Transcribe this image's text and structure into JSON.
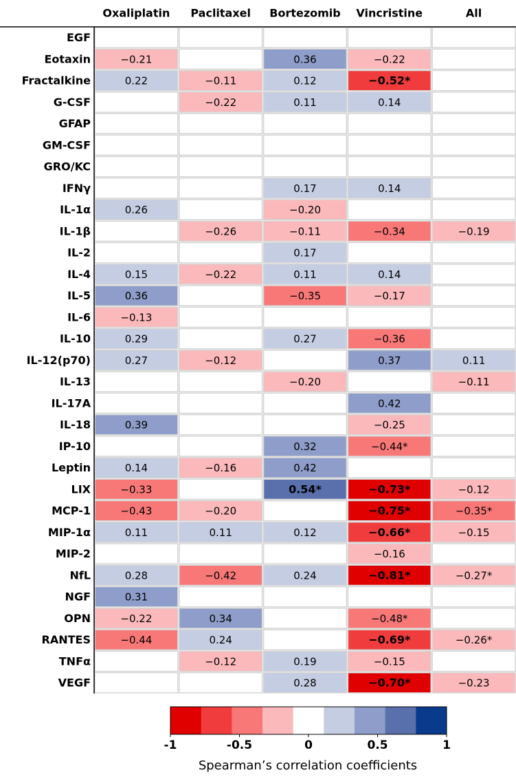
{
  "chart_data": {
    "type": "heatmap",
    "columns": [
      "Oxaliplatin",
      "Paclitaxel",
      "Bortezomib",
      "Vincristine",
      "All"
    ],
    "rows": [
      "EGF",
      "Eotaxin",
      "Fractalkine",
      "G-CSF",
      "GFAP",
      "GM-CSF",
      "GRO/KC",
      "IFNγ",
      "IL-1α",
      "IL-1β",
      "IL-2",
      "IL-4",
      "IL-5",
      "IL-6",
      "IL-10",
      "IL-12(p70)",
      "IL-13",
      "IL-17A",
      "IL-18",
      "IP-10",
      "Leptin",
      "LIX",
      "MCP-1",
      "MIP-1α",
      "MIP-2",
      "NfL",
      "NGF",
      "OPN",
      "RANTES",
      "TNFα",
      "VEGF"
    ],
    "values": [
      [
        null,
        null,
        null,
        null,
        null
      ],
      [
        -0.21,
        null,
        0.36,
        -0.22,
        null
      ],
      [
        0.22,
        -0.11,
        0.12,
        -0.52,
        null
      ],
      [
        null,
        -0.22,
        0.11,
        0.14,
        null
      ],
      [
        null,
        null,
        null,
        null,
        null
      ],
      [
        null,
        null,
        null,
        null,
        null
      ],
      [
        null,
        null,
        null,
        null,
        null
      ],
      [
        null,
        null,
        0.17,
        0.14,
        null
      ],
      [
        0.26,
        null,
        -0.2,
        null,
        null
      ],
      [
        null,
        -0.26,
        -0.11,
        -0.34,
        -0.19
      ],
      [
        null,
        null,
        0.17,
        null,
        null
      ],
      [
        0.15,
        -0.22,
        0.11,
        0.14,
        null
      ],
      [
        0.36,
        null,
        -0.35,
        -0.17,
        null
      ],
      [
        -0.13,
        null,
        null,
        null,
        null
      ],
      [
        0.29,
        null,
        0.27,
        -0.36,
        null
      ],
      [
        0.27,
        -0.12,
        null,
        0.37,
        0.11
      ],
      [
        null,
        null,
        -0.2,
        null,
        -0.11
      ],
      [
        null,
        null,
        null,
        0.42,
        null
      ],
      [
        0.39,
        null,
        null,
        -0.25,
        null
      ],
      [
        null,
        null,
        0.32,
        -0.44,
        null
      ],
      [
        0.14,
        -0.16,
        0.42,
        null,
        null
      ],
      [
        -0.33,
        null,
        0.54,
        -0.73,
        -0.12
      ],
      [
        -0.43,
        -0.2,
        null,
        -0.75,
        -0.35
      ],
      [
        0.11,
        0.11,
        0.12,
        -0.66,
        -0.15
      ],
      [
        null,
        null,
        null,
        -0.16,
        null
      ],
      [
        0.28,
        -0.42,
        0.24,
        -0.81,
        -0.27
      ],
      [
        0.31,
        null,
        null,
        null,
        null
      ],
      [
        -0.22,
        0.34,
        null,
        -0.48,
        null
      ],
      [
        -0.44,
        0.24,
        null,
        -0.69,
        -0.26
      ],
      [
        null,
        -0.12,
        0.19,
        -0.15,
        null
      ],
      [
        null,
        null,
        0.28,
        -0.7,
        -0.23
      ]
    ],
    "value_labels": [
      [
        null,
        null,
        null,
        null,
        null
      ],
      [
        "−0.21",
        null,
        "0.36",
        "−0.22",
        null
      ],
      [
        "0.22",
        "−0.11",
        "0.12",
        "−0.52*",
        null
      ],
      [
        null,
        "−0.22",
        "0.11",
        "0.14",
        null
      ],
      [
        null,
        null,
        null,
        null,
        null
      ],
      [
        null,
        null,
        null,
        null,
        null
      ],
      [
        null,
        null,
        null,
        null,
        null
      ],
      [
        null,
        null,
        "0.17",
        "0.14",
        null
      ],
      [
        "0.26",
        null,
        "−0.20",
        null,
        null
      ],
      [
        null,
        "−0.26",
        "−0.11",
        "−0.34",
        "−0.19"
      ],
      [
        null,
        null,
        "0.17",
        null,
        null
      ],
      [
        "0.15",
        "−0.22",
        "0.11",
        "0.14",
        null
      ],
      [
        "0.36",
        null,
        "−0.35",
        "−0.17",
        null
      ],
      [
        "−0.13",
        null,
        null,
        null,
        null
      ],
      [
        "0.29",
        null,
        "0.27",
        "−0.36",
        null
      ],
      [
        "0.27",
        "−0.12",
        null,
        "0.37",
        "0.11"
      ],
      [
        null,
        null,
        "−0.20",
        null,
        "−0.11"
      ],
      [
        null,
        null,
        null,
        "0.42",
        null
      ],
      [
        "0.39",
        null,
        null,
        "−0.25",
        null
      ],
      [
        null,
        null,
        "0.32",
        "−0.44*",
        null
      ],
      [
        "0.14",
        "−0.16",
        "0.42",
        null,
        null
      ],
      [
        "−0.33",
        null,
        "0.54*",
        "−0.73*",
        "−0.12"
      ],
      [
        "−0.43",
        "−0.20",
        null,
        "−0.75*",
        "−0.35*"
      ],
      [
        "0.11",
        "0.11",
        "0.12",
        "−0.66*",
        "−0.15"
      ],
      [
        null,
        null,
        null,
        "−0.16",
        null
      ],
      [
        "0.28",
        "−0.42",
        "0.24",
        "−0.81*",
        "−0.27*"
      ],
      [
        "0.31",
        null,
        null,
        null,
        null
      ],
      [
        "−0.22",
        "0.34",
        null,
        "−0.48*",
        null
      ],
      [
        "−0.44",
        "0.24",
        null,
        "−0.69*",
        "−0.26*"
      ],
      [
        null,
        "−0.12",
        "0.19",
        "−0.15",
        null
      ],
      [
        null,
        null,
        "0.28",
        "−0.70*",
        "−0.23"
      ]
    ],
    "colors": [
      "#e00000",
      "#f03c3c",
      "#f87878",
      "#fbb9bb",
      "#ffffff",
      "#c5cde3",
      "#8e9dc9",
      "#5a70ad",
      "#0a3a8c"
    ],
    "clim": [
      -1,
      1
    ],
    "cticks": [
      -1,
      -0.5,
      0,
      0.5,
      1
    ],
    "colorbar_label": "Spearman’s correlation coefficients"
  }
}
